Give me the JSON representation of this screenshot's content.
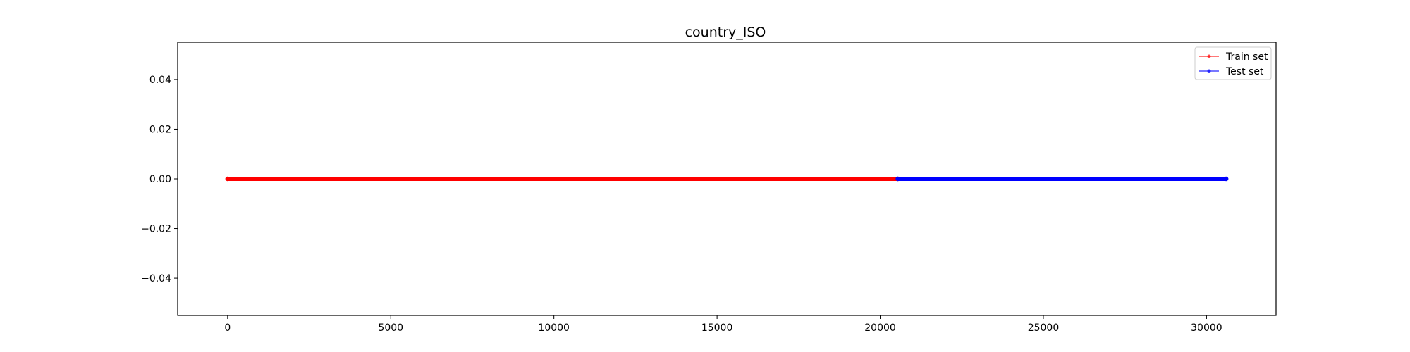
{
  "chart_data": {
    "type": "line",
    "title": "country_ISO",
    "xlabel": "",
    "ylabel": "",
    "xlim": [
      -1530,
      32130
    ],
    "ylim": [
      -0.055,
      0.055
    ],
    "x_ticks": [
      0,
      5000,
      10000,
      15000,
      20000,
      25000,
      30000
    ],
    "x_tick_labels": [
      "0",
      "5000",
      "10000",
      "15000",
      "20000",
      "25000",
      "30000"
    ],
    "y_ticks": [
      0.04,
      0.02,
      0.0,
      -0.02,
      -0.04
    ],
    "y_tick_labels": [
      "0.04",
      "0.02",
      "0.00",
      "−0.02",
      "−0.04"
    ],
    "grid": false,
    "legend_position": "top-right",
    "series": [
      {
        "name": "Train set",
        "color": "#ff0000",
        "x_range": [
          0,
          20540
        ],
        "y_constant": 0.0
      },
      {
        "name": "Test set",
        "color": "#0000ff",
        "x_range": [
          20540,
          30600
        ],
        "y_constant": 0.0
      }
    ]
  }
}
